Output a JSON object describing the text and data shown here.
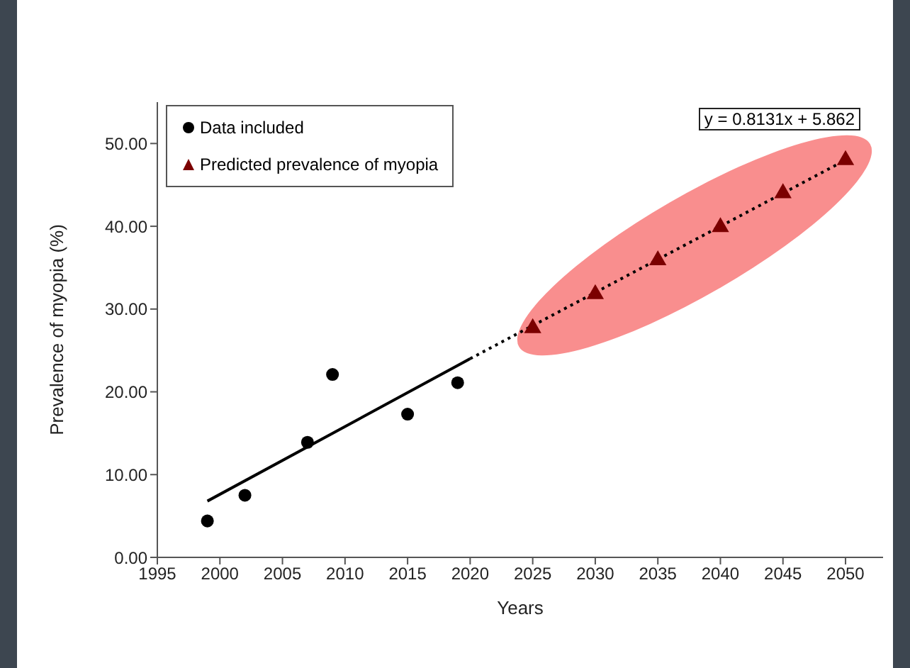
{
  "chart_data": {
    "type": "scatter",
    "xlabel": "Years",
    "ylabel": "Prevalence of myopia (%)",
    "xlim": [
      1995,
      2053
    ],
    "xticks": [
      1995,
      2000,
      2005,
      2010,
      2015,
      2020,
      2025,
      2030,
      2035,
      2040,
      2045,
      2050
    ],
    "ylim": [
      0,
      55
    ],
    "yticks": [
      {
        "value": 0,
        "label": "0.00"
      },
      {
        "value": 10,
        "label": "10.00"
      },
      {
        "value": 20,
        "label": "20.00"
      },
      {
        "value": 30,
        "label": "30.00"
      },
      {
        "value": 40,
        "label": "40.00"
      },
      {
        "value": 50,
        "label": "50.00"
      }
    ],
    "legend": "top left",
    "grid": false,
    "annotations": [
      "y = 0.8131x + 5.862"
    ],
    "series": [
      {
        "name": "Data included",
        "color": "#000000",
        "marker": "circle",
        "x": [
          1999,
          2002,
          2007,
          2009,
          2015,
          2019
        ],
        "values": [
          4.4,
          7.5,
          13.9,
          22.1,
          17.3,
          21.1
        ]
      },
      {
        "name": "Predicted prevalence of myopia",
        "color": "#7b0000",
        "marker": "triangle",
        "x": [
          2025,
          2030,
          2035,
          2040,
          2045,
          2050
        ],
        "values": [
          27.7,
          31.8,
          35.9,
          39.9,
          44.0,
          48.0
        ]
      },
      {
        "type": "line",
        "color": "#000000",
        "line_style": "solid",
        "marker": "none",
        "x": [
          1999,
          2020
        ],
        "values": [
          6.8,
          24.0
        ]
      },
      {
        "type": "line",
        "color": "#000000",
        "line_style": "dotted",
        "marker": "none",
        "x": [
          2020,
          2050
        ],
        "values": [
          24.0,
          48.0
        ]
      }
    ]
  }
}
